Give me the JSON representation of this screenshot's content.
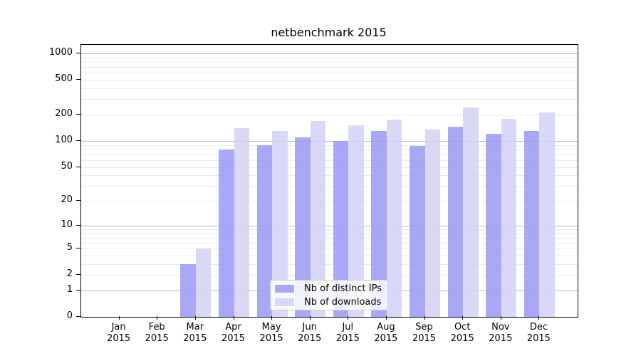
{
  "chart_data": {
    "type": "bar",
    "title": "netbenchmark 2015",
    "categories": [
      "Jan",
      "Feb",
      "Mar",
      "Apr",
      "May",
      "Jun",
      "Jul",
      "Aug",
      "Sep",
      "Oct",
      "Nov",
      "Dec"
    ],
    "year": "2015",
    "series": [
      {
        "name": "Nb of distinct IPs",
        "color": "#a8a8f4",
        "fill": "rgba(153,153,246,0.85)",
        "values": [
          0,
          0,
          3,
          80,
          90,
          110,
          100,
          130,
          87,
          145,
          120,
          130
        ]
      },
      {
        "name": "Nb of downloads",
        "color": "#dbdbf8",
        "fill": "rgba(210,210,246,0.85)",
        "values": [
          0,
          0,
          5,
          140,
          130,
          170,
          150,
          175,
          135,
          240,
          180,
          210
        ]
      }
    ],
    "yscale": "log10(1+x)",
    "yticks": [
      0,
      1,
      2,
      5,
      10,
      20,
      50,
      100,
      200,
      500,
      1000
    ],
    "ylim": [
      0,
      1250
    ],
    "grid": "horizontal major+minor",
    "legend_position": "lower center inside plot"
  }
}
